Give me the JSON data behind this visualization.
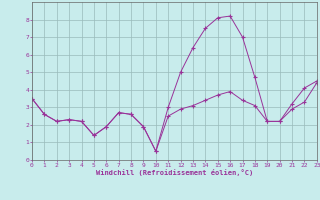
{
  "xlabel": "Windchill (Refroidissement éolien,°C)",
  "bg_color": "#c8ecec",
  "line_color": "#993399",
  "grid_color": "#99bbbb",
  "spine_color": "#666666",
  "xlim": [
    0,
    23
  ],
  "ylim": [
    0,
    9
  ],
  "xticks": [
    0,
    1,
    2,
    3,
    4,
    5,
    6,
    7,
    8,
    9,
    10,
    11,
    12,
    13,
    14,
    15,
    16,
    17,
    18,
    19,
    20,
    21,
    22,
    23
  ],
  "yticks": [
    0,
    1,
    2,
    3,
    4,
    5,
    6,
    7,
    8
  ],
  "hours": [
    0,
    1,
    2,
    3,
    4,
    5,
    6,
    7,
    8,
    9,
    10,
    11,
    12,
    13,
    14,
    15,
    16,
    17,
    18,
    19,
    20,
    21,
    22,
    23
  ],
  "temp": [
    3.5,
    2.6,
    2.2,
    2.3,
    2.2,
    1.4,
    1.9,
    2.7,
    2.6,
    1.9,
    0.5,
    3.0,
    5.0,
    6.4,
    7.5,
    8.1,
    8.2,
    7.0,
    4.7,
    2.2,
    2.2,
    2.9,
    3.3,
    4.4
  ],
  "windchill": [
    3.5,
    2.6,
    2.2,
    2.3,
    2.2,
    1.4,
    1.9,
    2.7,
    2.6,
    1.9,
    0.5,
    2.5,
    2.9,
    3.1,
    3.4,
    3.7,
    3.9,
    3.4,
    3.1,
    2.2,
    2.2,
    3.2,
    4.1,
    4.5
  ]
}
